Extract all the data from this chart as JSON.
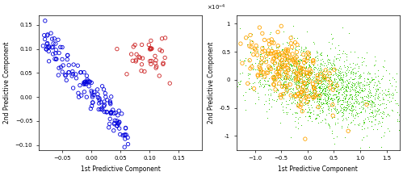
{
  "score_plot": {
    "blue_n": 150,
    "blue_x_start": -0.085,
    "blue_x_end": 0.065,
    "blue_slope": -1.3,
    "blue_intercept": 0.01,
    "blue_noise": 0.018,
    "red_n": 40,
    "red_x_center": 0.105,
    "red_y_center": 0.082,
    "red_x_std": 0.022,
    "red_y_std": 0.025,
    "xlim": [
      -0.09,
      0.19
    ],
    "ylim": [
      -0.11,
      0.17
    ],
    "xticks": [
      -0.05,
      0,
      0.05,
      0.1,
      0.15
    ],
    "yticks": [
      -0.1,
      -0.05,
      0,
      0.05,
      0.1,
      0.15
    ],
    "xlabel": "1st Predictive Component",
    "ylabel": "2nd Predictive Component",
    "blue_color": "#0000dd",
    "red_color": "#cc2222"
  },
  "loading_plot": {
    "orange_n": 220,
    "orange_x_center": -0.35,
    "orange_y_center": 0.05,
    "orange_x_std": 0.42,
    "orange_y_std": 0.3,
    "orange_slope": -0.35,
    "green_n": 2000,
    "green_x_center": 0.25,
    "green_y_center": -0.05,
    "green_x_std": 0.72,
    "green_y_std": 0.32,
    "green_slope": -0.22,
    "xlim": [
      -1.35,
      1.75
    ],
    "ylim": [
      -1.25,
      1.15
    ],
    "xticks": [
      -1,
      -0.5,
      0,
      0.5,
      1,
      1.5
    ],
    "yticks": [
      -1,
      -0.5,
      0,
      0.5,
      1
    ],
    "xlabel": "1st Predictive Component",
    "ylabel": "2nd Predictive Component",
    "orange_color": "#FFA500",
    "green_color": "#33cc00"
  }
}
